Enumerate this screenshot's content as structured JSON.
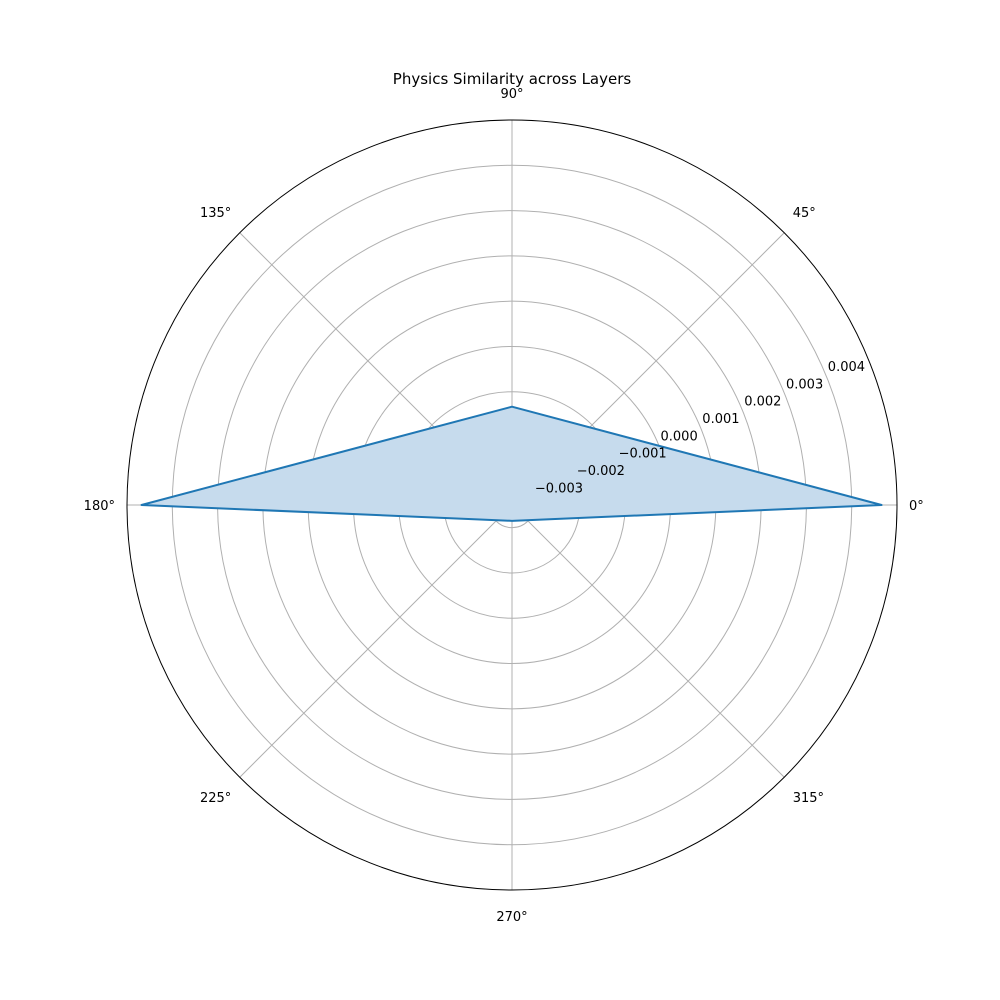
{
  "chart_data": {
    "type": "area",
    "projection": "polar",
    "title": "Physics Similarity across Layers",
    "angle_unit": "degrees",
    "angular_ticks": [
      {
        "angle": 0,
        "label": "0°"
      },
      {
        "angle": 45,
        "label": "45°"
      },
      {
        "angle": 90,
        "label": "90°"
      },
      {
        "angle": 135,
        "label": "135°"
      },
      {
        "angle": 180,
        "label": "180°"
      },
      {
        "angle": 225,
        "label": "225°"
      },
      {
        "angle": 270,
        "label": "270°"
      },
      {
        "angle": 315,
        "label": "315°"
      }
    ],
    "radial_ticks": [
      {
        "value": -0.003,
        "label": "−0.003"
      },
      {
        "value": -0.002,
        "label": "−0.002"
      },
      {
        "value": -0.001,
        "label": "−0.001"
      },
      {
        "value": 0.0,
        "label": "0.000"
      },
      {
        "value": 0.001,
        "label": "0.001"
      },
      {
        "value": 0.002,
        "label": "0.002"
      },
      {
        "value": 0.003,
        "label": "0.003"
      },
      {
        "value": 0.004,
        "label": "0.004"
      }
    ],
    "rlim": [
      -0.0035,
      0.005
    ],
    "radial_label_angle": 22.5,
    "grid": true,
    "series": [
      {
        "angles": [
          0,
          90,
          180,
          270
        ],
        "values": [
          0.00466,
          -0.00133,
          0.00468,
          -0.00315
        ],
        "closed": true,
        "filled": true
      }
    ],
    "colors": {
      "line": "#1f77b4",
      "fill": "#c6dbed",
      "grid": "#b0b0b0",
      "frame": "#000000"
    }
  }
}
